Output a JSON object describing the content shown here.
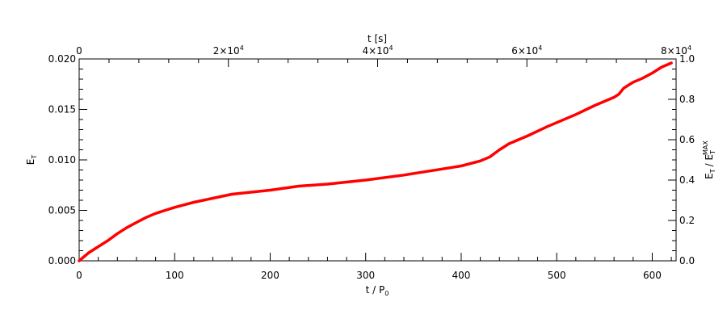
{
  "chart_data": {
    "type": "line",
    "xlabel": "t / P",
    "xlabel_sub": "0",
    "top_xlabel": "t [s]",
    "ylabel": "E",
    "ylabel_sub": "T",
    "right_ylabel": "E",
    "right_ylabel_sub": "T",
    "right_ylabel_denom": "/ E",
    "right_ylabel_denom_sub": "T",
    "right_ylabel_denom_sup": "MAX",
    "xlim": [
      0,
      625
    ],
    "ylim": [
      0.0,
      0.02
    ],
    "top_xlim": [
      0,
      80000
    ],
    "right_ylim": [
      0.0,
      1.0
    ],
    "x_ticks": [
      "0",
      "100",
      "200",
      "300",
      "400",
      "500",
      "600"
    ],
    "y_ticks": [
      "0.000",
      "0.005",
      "0.010",
      "0.015",
      "0.020"
    ],
    "right_y_ticks": [
      "0.0",
      "0.2",
      "0.4",
      "0.6",
      "0.8",
      "1.0"
    ],
    "top_x_ticks": [
      {
        "mant": "0",
        "exp": ""
      },
      {
        "mant": "2×10",
        "exp": "4"
      },
      {
        "mant": "4×10",
        "exp": "4"
      },
      {
        "mant": "6×10",
        "exp": "4"
      },
      {
        "mant": "8×10",
        "exp": "4"
      }
    ],
    "series": [
      {
        "color": "#ff0000",
        "x": [
          0,
          10,
          20,
          30,
          40,
          50,
          60,
          70,
          80,
          90,
          100,
          120,
          140,
          160,
          180,
          200,
          230,
          260,
          300,
          340,
          380,
          400,
          420,
          430,
          440,
          450,
          470,
          490,
          500,
          520,
          540,
          560,
          565,
          570,
          575,
          580,
          590,
          600,
          610,
          620
        ],
        "y": [
          0.0,
          0.0008,
          0.0014,
          0.002,
          0.0027,
          0.0033,
          0.0038,
          0.0043,
          0.0047,
          0.005,
          0.0053,
          0.0058,
          0.0062,
          0.0066,
          0.0068,
          0.007,
          0.0074,
          0.0076,
          0.008,
          0.0085,
          0.0091,
          0.0094,
          0.0099,
          0.0103,
          0.011,
          0.0116,
          0.0124,
          0.0133,
          0.0137,
          0.0145,
          0.0154,
          0.0162,
          0.0165,
          0.0171,
          0.0174,
          0.0177,
          0.0181,
          0.0186,
          0.0192,
          0.0196
        ]
      }
    ]
  }
}
